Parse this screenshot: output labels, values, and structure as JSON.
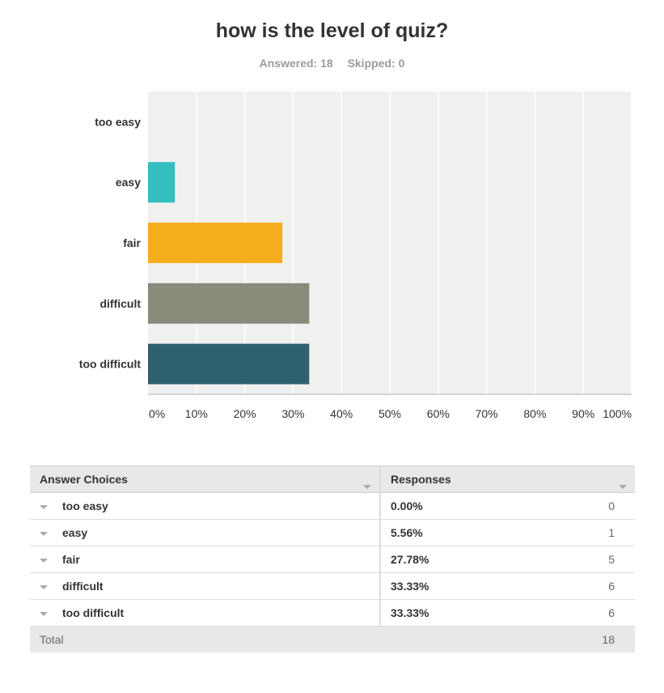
{
  "title": "how is the level of quiz?",
  "answered_label": "Answered: 18",
  "skipped_label": "Skipped: 0",
  "chart_data": {
    "type": "bar",
    "orientation": "horizontal",
    "categories": [
      "too easy",
      "easy",
      "fair",
      "difficult",
      "too difficult"
    ],
    "values": [
      0.0,
      5.56,
      27.78,
      33.33,
      33.33
    ],
    "colors": [
      "#2f8fcf",
      "#35bfc0",
      "#f6ae1c",
      "#8a8a7a",
      "#2e606e"
    ],
    "xlim": [
      0,
      100
    ],
    "xticks": [
      "0%",
      "10%",
      "20%",
      "30%",
      "40%",
      "50%",
      "60%",
      "70%",
      "80%",
      "90%",
      "100%"
    ],
    "grid": true,
    "plot_background": "#f0f0f0"
  },
  "table": {
    "headers": [
      "Answer Choices",
      "Responses"
    ],
    "rows": [
      {
        "choice": "too easy",
        "pct": "0.00%",
        "count": "0"
      },
      {
        "choice": "easy",
        "pct": "5.56%",
        "count": "1"
      },
      {
        "choice": "fair",
        "pct": "27.78%",
        "count": "5"
      },
      {
        "choice": "difficult",
        "pct": "33.33%",
        "count": "6"
      },
      {
        "choice": "too difficult",
        "pct": "33.33%",
        "count": "6"
      }
    ],
    "total_label": "Total",
    "total_value": "18"
  }
}
